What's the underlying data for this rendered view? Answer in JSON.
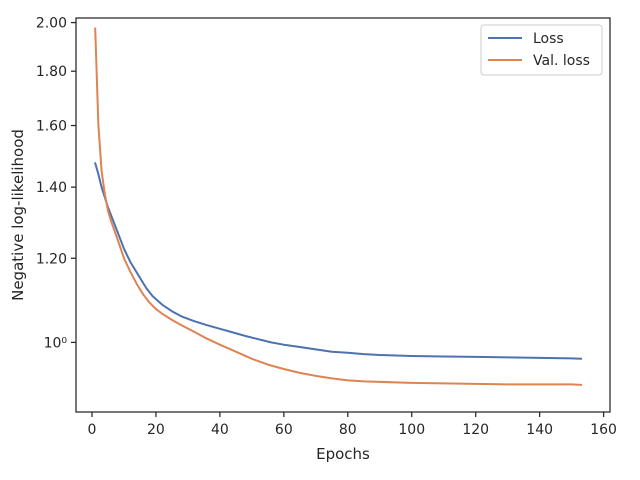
{
  "chart_data": {
    "type": "line",
    "xlabel": "Epochs",
    "ylabel": "Negative log-likelihood",
    "xlim": [
      -5,
      162
    ],
    "ylim": [
      0.86,
      2.02
    ],
    "yscale": "log",
    "xticks": [
      0,
      20,
      40,
      60,
      80,
      100,
      120,
      140,
      160
    ],
    "xtick_labels": [
      "0",
      "20",
      "40",
      "60",
      "80",
      "100",
      "120",
      "140",
      "160"
    ],
    "yticks": [
      1.0,
      1.2,
      1.4,
      1.6,
      1.8,
      2.0
    ],
    "ytick_labels": [
      "10⁰",
      "1.20",
      "1.40",
      "1.60",
      "1.80",
      "2.00"
    ],
    "grid": false,
    "legend_position": "upper right",
    "series": [
      {
        "name": "Loss",
        "color": "#4c72b0",
        "x": [
          1,
          2,
          3,
          5,
          8,
          10,
          12,
          15,
          17,
          19,
          22,
          25,
          28,
          32,
          36,
          40,
          44,
          48,
          52,
          56,
          60,
          65,
          70,
          75,
          80,
          85,
          90,
          95,
          100,
          110,
          120,
          130,
          140,
          150,
          153
        ],
        "y": [
          1.475,
          1.44,
          1.4,
          1.34,
          1.27,
          1.225,
          1.19,
          1.15,
          1.125,
          1.105,
          1.085,
          1.07,
          1.058,
          1.047,
          1.038,
          1.03,
          1.022,
          1.014,
          1.007,
          1.0,
          0.995,
          0.99,
          0.985,
          0.98,
          0.978,
          0.975,
          0.973,
          0.972,
          0.971,
          0.97,
          0.969,
          0.968,
          0.967,
          0.966,
          0.965
        ]
      },
      {
        "name": "Val. loss",
        "color": "#dd8452",
        "x": [
          1,
          2,
          3,
          4,
          5,
          6,
          8,
          10,
          12,
          14,
          16,
          18,
          20,
          22,
          25,
          28,
          32,
          36,
          40,
          45,
          50,
          55,
          60,
          65,
          70,
          75,
          80,
          85,
          90,
          100,
          110,
          120,
          130,
          140,
          150,
          153
        ],
        "y": [
          1.975,
          1.6,
          1.45,
          1.38,
          1.33,
          1.3,
          1.25,
          1.2,
          1.165,
          1.135,
          1.11,
          1.09,
          1.075,
          1.064,
          1.05,
          1.038,
          1.023,
          1.008,
          0.995,
          0.98,
          0.965,
          0.953,
          0.944,
          0.936,
          0.93,
          0.925,
          0.921,
          0.919,
          0.918,
          0.916,
          0.915,
          0.914,
          0.913,
          0.913,
          0.913,
          0.912
        ]
      }
    ]
  }
}
